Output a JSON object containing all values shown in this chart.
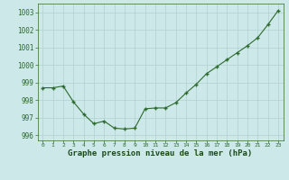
{
  "x": [
    0,
    1,
    2,
    3,
    4,
    5,
    6,
    7,
    8,
    9,
    10,
    11,
    12,
    13,
    14,
    15,
    16,
    17,
    18,
    19,
    20,
    21,
    22,
    23
  ],
  "y": [
    998.7,
    998.7,
    998.8,
    997.9,
    997.2,
    996.65,
    996.8,
    996.4,
    996.35,
    996.4,
    997.5,
    997.55,
    997.55,
    997.85,
    998.4,
    998.9,
    999.5,
    999.9,
    1000.3,
    1000.7,
    1001.1,
    1001.55,
    1002.3,
    1003.1
  ],
  "ylim": [
    995.7,
    1003.5
  ],
  "xlim": [
    -0.5,
    23.5
  ],
  "yticks": [
    996,
    997,
    998,
    999,
    1000,
    1001,
    1002,
    1003
  ],
  "xticks": [
    0,
    1,
    2,
    3,
    4,
    5,
    6,
    7,
    8,
    9,
    10,
    11,
    12,
    13,
    14,
    15,
    16,
    17,
    18,
    19,
    20,
    21,
    22,
    23
  ],
  "xlabel": "Graphe pression niveau de la mer (hPa)",
  "line_color": "#2d6a2d",
  "marker": "+",
  "bg_color": "#cce8e8",
  "grid_color": "#b0d0d0",
  "label_color": "#1a4a1a",
  "tick_color": "#2d6a2d",
  "xlabel_fontsize": 6.5,
  "ytick_fontsize": 5.5,
  "xtick_fontsize": 4.5
}
